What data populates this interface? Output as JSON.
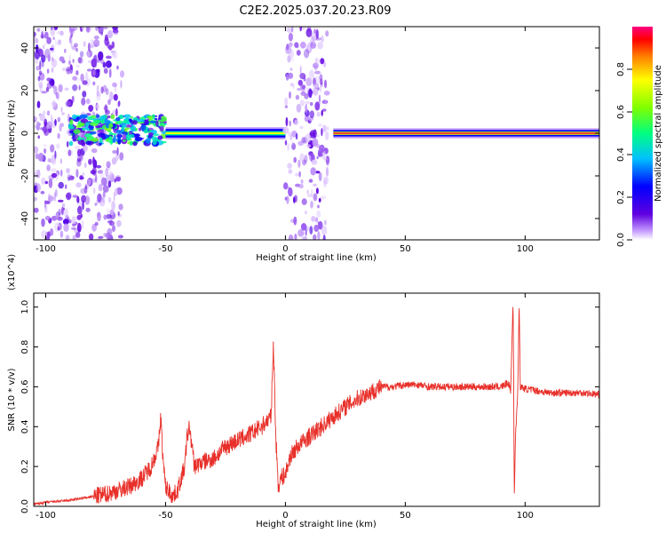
{
  "page": {
    "title": "C2E2.2025.037.20.23.R09"
  },
  "chart_data": [
    {
      "type": "heatmap",
      "xlabel": "Height of straight line (km)",
      "ylabel": "Frequency (Hz)",
      "xlim": [
        -105,
        131
      ],
      "ylim": [
        -50,
        50
      ],
      "x_ticks": [
        -100,
        -50,
        0,
        50,
        100
      ],
      "y_ticks": [
        -40,
        -20,
        0,
        20,
        40
      ],
      "colorbar": {
        "label": "Normalized spectral amplitude",
        "range": [
          0,
          1
        ],
        "ticks": [
          "0.0",
          "0.2",
          "0.4",
          "0.6",
          "0.8"
        ],
        "colors": [
          "#ffffff",
          "#c8a0ff",
          "#6000e0",
          "#0000ff",
          "#00c0ff",
          "#00ff80",
          "#80ff00",
          "#ffff00",
          "#ff8000",
          "#ff0000",
          "#ff0080"
        ]
      },
      "regions": [
        {
          "name": "scattered-speckle",
          "x_range": [
            -105,
            -68
          ],
          "freq_range": [
            -50,
            50
          ],
          "amplitude": 0.15
        },
        {
          "name": "broad-band",
          "x_range": [
            -90,
            -50
          ],
          "freq_range": [
            -5,
            8
          ],
          "amplitude": 0.4
        },
        {
          "name": "narrow-line-left",
          "x_range": [
            -50,
            0
          ],
          "freq_range": [
            -2,
            2
          ],
          "amplitude": 0.7
        },
        {
          "name": "speckle-column",
          "x_range": [
            0,
            18
          ],
          "freq_range": [
            -50,
            50
          ],
          "amplitude": 0.15
        },
        {
          "name": "narrow-line-right",
          "x_range": [
            20,
            131
          ],
          "freq_range": [
            -1.5,
            1.5
          ],
          "amplitude": 0.95
        }
      ]
    },
    {
      "type": "line",
      "xlabel": "Height of straight line (km)",
      "ylabel": "SNR (10 * v/v)",
      "y_multiplier": "(x10^4)",
      "xlim": [
        -105,
        131
      ],
      "ylim": [
        0,
        1.07
      ],
      "x_ticks": [
        -100,
        -50,
        0,
        50,
        100
      ],
      "y_ticks": [
        "0.0",
        "0.2",
        "0.4",
        "0.6",
        "0.8",
        "1.0"
      ],
      "color": "#e8302a",
      "series": [
        {
          "x": [
            -105,
            -100,
            -95,
            -90,
            -85,
            -80,
            -75,
            -70,
            -65,
            -60,
            -56,
            -53,
            -52,
            -51,
            -50,
            -47,
            -45,
            -42,
            -41,
            -40,
            -38,
            -35,
            -30,
            -25,
            -20,
            -15,
            -10,
            -6,
            -5,
            -4,
            -3,
            -2,
            0,
            2,
            5,
            10,
            15,
            20,
            25,
            30,
            35,
            40,
            45,
            50,
            55,
            60,
            65,
            70,
            75,
            80,
            85,
            90,
            93,
            94,
            95,
            95.5,
            96,
            97,
            97.5,
            98,
            100,
            105,
            110,
            115,
            120,
            125,
            131
          ],
          "y": [
            0.01,
            0.02,
            0.025,
            0.03,
            0.04,
            0.05,
            0.06,
            0.08,
            0.1,
            0.14,
            0.2,
            0.3,
            0.45,
            0.22,
            0.1,
            0.05,
            0.08,
            0.2,
            0.35,
            0.4,
            0.2,
            0.22,
            0.24,
            0.3,
            0.33,
            0.36,
            0.4,
            0.45,
            0.82,
            0.35,
            0.1,
            0.14,
            0.16,
            0.25,
            0.3,
            0.35,
            0.4,
            0.45,
            0.5,
            0.54,
            0.57,
            0.6,
            0.6,
            0.61,
            0.61,
            0.6,
            0.6,
            0.6,
            0.6,
            0.6,
            0.6,
            0.6,
            0.62,
            0.58,
            1.05,
            0.06,
            0.35,
            0.6,
            1.03,
            0.6,
            0.59,
            0.58,
            0.57,
            0.57,
            0.57,
            0.57,
            0.56
          ]
        }
      ]
    }
  ]
}
